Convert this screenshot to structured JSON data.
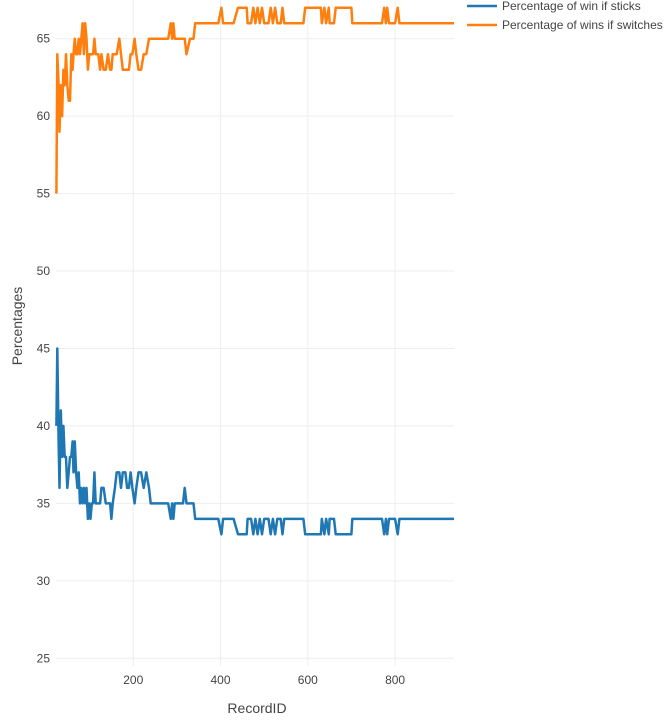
{
  "chart_data": {
    "type": "line",
    "xlabel": "RecordID",
    "ylabel": "Percentages",
    "xlim": [
      23,
      935
    ],
    "ylim": [
      24.5,
      67.5
    ],
    "x_ticks": [
      200,
      400,
      600,
      800
    ],
    "y_ticks": [
      25,
      30,
      35,
      40,
      45,
      50,
      55,
      60,
      65
    ],
    "grid": true,
    "legend_position": "top-right",
    "series": [
      {
        "name": "Percentage of win if sticks",
        "color": "#1f77b4",
        "points": [
          [
            24,
            40
          ],
          [
            26,
            45
          ],
          [
            29,
            39
          ],
          [
            31,
            36
          ],
          [
            34,
            41
          ],
          [
            37,
            38
          ],
          [
            40,
            40
          ],
          [
            43,
            38
          ],
          [
            46,
            38
          ],
          [
            49,
            36
          ],
          [
            52,
            37
          ],
          [
            55,
            38
          ],
          [
            58,
            38
          ],
          [
            61,
            39
          ],
          [
            63,
            37
          ],
          [
            66,
            39
          ],
          [
            69,
            37
          ],
          [
            72,
            36
          ],
          [
            75,
            37
          ],
          [
            78,
            35
          ],
          [
            81,
            36
          ],
          [
            84,
            35
          ],
          [
            87,
            36
          ],
          [
            90,
            35
          ],
          [
            93,
            36
          ],
          [
            96,
            34
          ],
          [
            99,
            35
          ],
          [
            102,
            34
          ],
          [
            105,
            35
          ],
          [
            108,
            35
          ],
          [
            111,
            37
          ],
          [
            114,
            35
          ],
          [
            117,
            35
          ],
          [
            120,
            35
          ],
          [
            124,
            35
          ],
          [
            127,
            36
          ],
          [
            132,
            36
          ],
          [
            137,
            35
          ],
          [
            142,
            35
          ],
          [
            147,
            35
          ],
          [
            150,
            34
          ],
          [
            153,
            35
          ],
          [
            158,
            36
          ],
          [
            162,
            37
          ],
          [
            168,
            37
          ],
          [
            172,
            36
          ],
          [
            176,
            37
          ],
          [
            182,
            37
          ],
          [
            186,
            36
          ],
          [
            190,
            36
          ],
          [
            194,
            37
          ],
          [
            198,
            36
          ],
          [
            203,
            35
          ],
          [
            207,
            36
          ],
          [
            212,
            37
          ],
          [
            218,
            37
          ],
          [
            224,
            36
          ],
          [
            230,
            37
          ],
          [
            236,
            36
          ],
          [
            240,
            35
          ],
          [
            248,
            35
          ],
          [
            256,
            35
          ],
          [
            264,
            35
          ],
          [
            272,
            35
          ],
          [
            280,
            35
          ],
          [
            286,
            34
          ],
          [
            289,
            35
          ],
          [
            292,
            34
          ],
          [
            295,
            35
          ],
          [
            302,
            35
          ],
          [
            308,
            35
          ],
          [
            314,
            35
          ],
          [
            318,
            36
          ],
          [
            322,
            35
          ],
          [
            330,
            35
          ],
          [
            338,
            35
          ],
          [
            342,
            34
          ],
          [
            350,
            34
          ],
          [
            360,
            34
          ],
          [
            370,
            34
          ],
          [
            380,
            34
          ],
          [
            395,
            34
          ],
          [
            402,
            33
          ],
          [
            406,
            34
          ],
          [
            420,
            34
          ],
          [
            430,
            34
          ],
          [
            440,
            33
          ],
          [
            460,
            33
          ],
          [
            462,
            34
          ],
          [
            470,
            34
          ],
          [
            475,
            33
          ],
          [
            480,
            34
          ],
          [
            485,
            33
          ],
          [
            490,
            34
          ],
          [
            495,
            33
          ],
          [
            500,
            34
          ],
          [
            510,
            34
          ],
          [
            515,
            33
          ],
          [
            520,
            34
          ],
          [
            525,
            33
          ],
          [
            530,
            34
          ],
          [
            538,
            34
          ],
          [
            542,
            33
          ],
          [
            546,
            34
          ],
          [
            560,
            34
          ],
          [
            580,
            34
          ],
          [
            590,
            34
          ],
          [
            594,
            33
          ],
          [
            630,
            33
          ],
          [
            632,
            34
          ],
          [
            638,
            33
          ],
          [
            642,
            34
          ],
          [
            648,
            33
          ],
          [
            650,
            34
          ],
          [
            660,
            34
          ],
          [
            664,
            33
          ],
          [
            700,
            33
          ],
          [
            702,
            34
          ],
          [
            720,
            34
          ],
          [
            750,
            34
          ],
          [
            770,
            34
          ],
          [
            775,
            33
          ],
          [
            779,
            34
          ],
          [
            782,
            33
          ],
          [
            786,
            34
          ],
          [
            800,
            34
          ],
          [
            806,
            33
          ],
          [
            810,
            34
          ],
          [
            815,
            34
          ],
          [
            850,
            34
          ],
          [
            900,
            34
          ],
          [
            935,
            34
          ]
        ]
      },
      {
        "name": "Percentage of wins if switches",
        "color": "#ff7f0e",
        "points": [
          [
            24,
            55
          ],
          [
            26,
            64
          ],
          [
            29,
            62
          ],
          [
            31,
            59
          ],
          [
            34,
            62
          ],
          [
            37,
            60
          ],
          [
            40,
            63
          ],
          [
            43,
            62
          ],
          [
            46,
            64
          ],
          [
            49,
            62
          ],
          [
            52,
            61
          ],
          [
            55,
            61
          ],
          [
            58,
            64
          ],
          [
            61,
            63
          ],
          [
            63,
            64
          ],
          [
            66,
            65
          ],
          [
            69,
            64
          ],
          [
            72,
            64
          ],
          [
            75,
            65
          ],
          [
            78,
            64
          ],
          [
            81,
            65
          ],
          [
            84,
            66
          ],
          [
            87,
            64
          ],
          [
            90,
            66
          ],
          [
            93,
            65
          ],
          [
            96,
            63
          ],
          [
            99,
            64
          ],
          [
            102,
            64
          ],
          [
            105,
            64
          ],
          [
            108,
            64
          ],
          [
            111,
            65
          ],
          [
            114,
            64
          ],
          [
            117,
            64
          ],
          [
            120,
            64
          ],
          [
            124,
            63
          ],
          [
            127,
            64
          ],
          [
            132,
            63
          ],
          [
            137,
            63
          ],
          [
            142,
            64
          ],
          [
            147,
            63
          ],
          [
            150,
            63
          ],
          [
            153,
            64
          ],
          [
            158,
            64
          ],
          [
            162,
            64
          ],
          [
            168,
            65
          ],
          [
            172,
            64
          ],
          [
            176,
            63
          ],
          [
            182,
            63
          ],
          [
            186,
            63
          ],
          [
            190,
            63
          ],
          [
            194,
            64
          ],
          [
            198,
            64
          ],
          [
            203,
            65
          ],
          [
            207,
            64
          ],
          [
            212,
            63
          ],
          [
            218,
            63
          ],
          [
            224,
            64
          ],
          [
            230,
            64
          ],
          [
            236,
            65
          ],
          [
            240,
            65
          ],
          [
            248,
            65
          ],
          [
            256,
            65
          ],
          [
            264,
            65
          ],
          [
            272,
            65
          ],
          [
            280,
            65
          ],
          [
            286,
            66
          ],
          [
            289,
            65
          ],
          [
            292,
            66
          ],
          [
            295,
            65
          ],
          [
            302,
            65
          ],
          [
            308,
            65
          ],
          [
            314,
            65
          ],
          [
            318,
            65
          ],
          [
            322,
            64
          ],
          [
            330,
            65
          ],
          [
            338,
            65
          ],
          [
            342,
            66
          ],
          [
            350,
            66
          ],
          [
            360,
            66
          ],
          [
            370,
            66
          ],
          [
            380,
            66
          ],
          [
            395,
            66
          ],
          [
            402,
            67
          ],
          [
            406,
            66
          ],
          [
            420,
            66
          ],
          [
            430,
            66
          ],
          [
            440,
            67
          ],
          [
            460,
            67
          ],
          [
            462,
            66
          ],
          [
            470,
            66
          ],
          [
            475,
            67
          ],
          [
            480,
            66
          ],
          [
            485,
            67
          ],
          [
            490,
            66
          ],
          [
            495,
            67
          ],
          [
            500,
            66
          ],
          [
            510,
            66
          ],
          [
            515,
            67
          ],
          [
            520,
            66
          ],
          [
            525,
            67
          ],
          [
            530,
            66
          ],
          [
            538,
            66
          ],
          [
            542,
            67
          ],
          [
            546,
            66
          ],
          [
            560,
            66
          ],
          [
            580,
            66
          ],
          [
            590,
            66
          ],
          [
            594,
            67
          ],
          [
            630,
            67
          ],
          [
            632,
            66
          ],
          [
            638,
            67
          ],
          [
            642,
            66
          ],
          [
            648,
            67
          ],
          [
            650,
            66
          ],
          [
            660,
            66
          ],
          [
            664,
            67
          ],
          [
            700,
            67
          ],
          [
            702,
            66
          ],
          [
            720,
            66
          ],
          [
            750,
            66
          ],
          [
            770,
            66
          ],
          [
            775,
            67
          ],
          [
            779,
            66
          ],
          [
            782,
            67
          ],
          [
            786,
            66
          ],
          [
            800,
            66
          ],
          [
            806,
            67
          ],
          [
            810,
            66
          ],
          [
            815,
            66
          ],
          [
            850,
            66
          ],
          [
            900,
            66
          ],
          [
            935,
            66
          ]
        ]
      }
    ]
  }
}
